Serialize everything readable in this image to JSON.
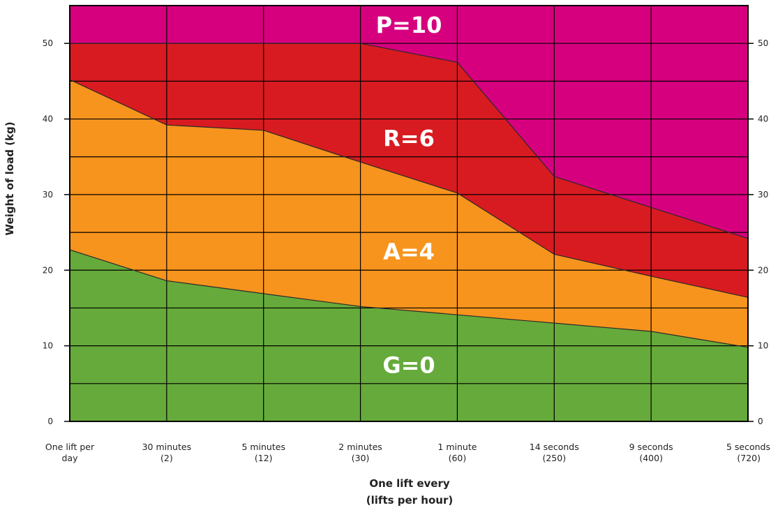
{
  "chart_data": {
    "type": "area",
    "title": "",
    "xlabel": "One lift every",
    "xlabel_line2": "(lifts per hour)",
    "ylabel": "Weight of load (kg)",
    "ylim": [
      0,
      55
    ],
    "yticks": [
      0,
      10,
      20,
      30,
      40,
      50
    ],
    "grid": true,
    "categories": [
      {
        "line1": "One lift per",
        "line2": "day"
      },
      {
        "line1": "30 minutes",
        "line2": "(2)"
      },
      {
        "line1": "5 minutes",
        "line2": "(12)"
      },
      {
        "line1": "2 minutes",
        "line2": "(30)"
      },
      {
        "line1": "1 minute",
        "line2": "(60)"
      },
      {
        "line1": "14 seconds",
        "line2": "(250)"
      },
      {
        "line1": "9 seconds",
        "line2": "(400)"
      },
      {
        "line1": "5 seconds",
        "line2": "(720)"
      }
    ],
    "boundaries": [
      {
        "upper_of": "G=0",
        "values": [
          22.7,
          18.6,
          16.9,
          15.2,
          14.1,
          13.0,
          11.9,
          9.8
        ]
      },
      {
        "upper_of": "A=4",
        "values": [
          45.2,
          39.2,
          38.5,
          34.3,
          30.2,
          22.1,
          19.2,
          16.4
        ]
      },
      {
        "upper_of": "R=6",
        "values": [
          50.0,
          50.0,
          50.0,
          50.0,
          47.5,
          32.4,
          28.3,
          24.2
        ]
      }
    ],
    "zones": [
      {
        "label": "G=0",
        "color": "#66aa3b",
        "label_x": 3.5,
        "label_y": 7.5
      },
      {
        "label": "A=4",
        "color": "#f7941d",
        "label_x": 3.5,
        "label_y": 22.5
      },
      {
        "label": "R=6",
        "color": "#d81b20",
        "label_x": 3.5,
        "label_y": 37.5
      },
      {
        "label": "P=10",
        "color": "#d6007e",
        "label_x": 3.5,
        "label_y": 52.5
      }
    ]
  }
}
